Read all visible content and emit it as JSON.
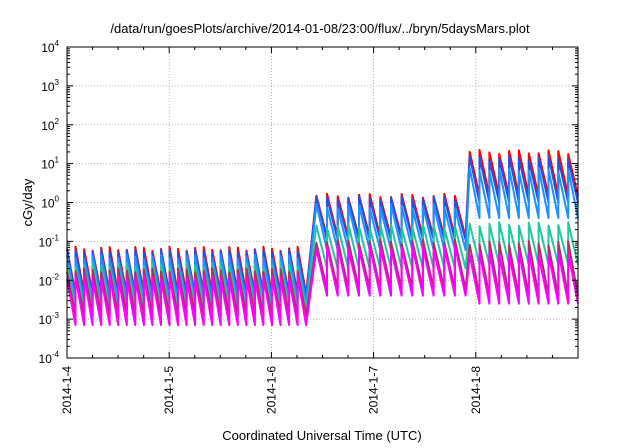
{
  "chart_data": {
    "type": "line",
    "title": "/data/run/goesPlots/archive/2014-01-08/23:00/flux/../bryn/5daysMars.plot",
    "xlabel": "Coordinated Universal Time (UTC)",
    "ylabel": "cGy/day",
    "x_ticks": [
      "2014-1-4",
      "2014-1-5",
      "2014-1-6",
      "2014-1-7",
      "2014-1-8"
    ],
    "xlim": [
      "2014-01-04",
      "2014-01-09"
    ],
    "y_scale": "log",
    "ylim": [
      0.0001,
      10000
    ],
    "y_ticks": [
      {
        "base": "10",
        "exp": "-4"
      },
      {
        "base": "10",
        "exp": "-3"
      },
      {
        "base": "10",
        "exp": "-2"
      },
      {
        "base": "10",
        "exp": "-1"
      },
      {
        "base": "10",
        "exp": "0"
      },
      {
        "base": "10",
        "exp": "1"
      },
      {
        "base": "10",
        "exp": "2"
      },
      {
        "base": "10",
        "exp": "3"
      },
      {
        "base": "10",
        "exp": "4"
      }
    ],
    "grid": true,
    "legend": "none",
    "series": [
      {
        "color": "#ff0000",
        "segments": [
          {
            "start": "2014-01-04",
            "end": "2014-01-06.34",
            "cycles": 28,
            "peak": 0.065,
            "trough": 0.0045
          },
          {
            "start": "2014-01-06.44",
            "end": "2014-01-07.9",
            "cycles": 14,
            "peak": 1.5,
            "trough": 0.13
          },
          {
            "start": "2014-01-07.94",
            "end": "2014-01-09",
            "cycles": 11,
            "peak": 20,
            "trough": 1.5
          }
        ]
      },
      {
        "color": "#2a4fe0",
        "segments": [
          {
            "start": "2014-01-04",
            "end": "2014-01-06.34",
            "cycles": 28,
            "peak": 0.055,
            "trough": 0.0038
          },
          {
            "start": "2014-01-06.44",
            "end": "2014-01-07.9",
            "cycles": 14,
            "peak": 1.3,
            "trough": 0.11
          },
          {
            "start": "2014-01-07.94",
            "end": "2014-01-09",
            "cycles": 11,
            "peak": 14,
            "trough": 1.0
          }
        ]
      },
      {
        "color": "#1e90ff",
        "segments": [
          {
            "start": "2014-01-04",
            "end": "2014-01-06.34",
            "cycles": 28,
            "peak": 0.04,
            "trough": 0.003
          },
          {
            "start": "2014-01-06.44",
            "end": "2014-01-07.9",
            "cycles": 14,
            "peak": 0.8,
            "trough": 0.06
          },
          {
            "start": "2014-01-07.94",
            "end": "2014-01-09",
            "cycles": 11,
            "peak": 7,
            "trough": 0.4
          }
        ]
      },
      {
        "color": "#20c8a0",
        "segments": [
          {
            "start": "2014-01-04",
            "end": "2014-01-06.34",
            "cycles": 28,
            "peak": 0.025,
            "trough": 0.0018
          },
          {
            "start": "2014-01-06.44",
            "end": "2014-01-07.9",
            "cycles": 14,
            "peak": 0.25,
            "trough": 0.02
          },
          {
            "start": "2014-01-07.94",
            "end": "2014-01-09",
            "cycles": 11,
            "peak": 0.28,
            "trough": 0.025
          }
        ]
      },
      {
        "color": "#b03060",
        "segments": [
          {
            "start": "2014-01-04",
            "end": "2014-01-06.34",
            "cycles": 28,
            "peak": 0.018,
            "trough": 0.0012
          },
          {
            "start": "2014-01-06.44",
            "end": "2014-01-07.9",
            "cycles": 14,
            "peak": 0.1,
            "trough": 0.006
          },
          {
            "start": "2014-01-07.94",
            "end": "2014-01-09",
            "cycles": 11,
            "peak": 0.09,
            "trough": 0.004
          }
        ]
      },
      {
        "color": "#ff00ff",
        "segments": [
          {
            "start": "2014-01-04",
            "end": "2014-01-06.34",
            "cycles": 28,
            "peak": 0.012,
            "trough": 0.0007
          },
          {
            "start": "2014-01-06.44",
            "end": "2014-01-07.9",
            "cycles": 14,
            "peak": 0.07,
            "trough": 0.004
          },
          {
            "start": "2014-01-07.94",
            "end": "2014-01-09",
            "cycles": 11,
            "peak": 0.05,
            "trough": 0.0025
          }
        ]
      }
    ]
  }
}
